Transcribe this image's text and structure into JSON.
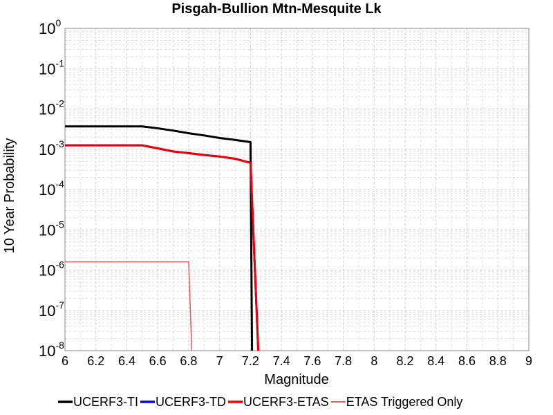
{
  "chart_data": {
    "type": "line",
    "title": "Pisgah-Bullion Mtn-Mesquite Lk",
    "xlabel": "Magnitude",
    "ylabel": "10 Year Probability",
    "xlim": [
      6,
      9
    ],
    "ylim": [
      1e-08,
      1
    ],
    "yscale": "log",
    "grid": true,
    "legend_position": "bottom",
    "x_ticks": [
      "6",
      "6.2",
      "6.4",
      "6.6",
      "6.8",
      "7",
      "7.2",
      "7.4",
      "7.6",
      "7.8",
      "8",
      "8.2",
      "8.4",
      "8.6",
      "8.8",
      "9"
    ],
    "y_ticks": [
      {
        "base": "10",
        "exp": "0",
        "value": 1
      },
      {
        "base": "10",
        "exp": "-1",
        "value": 0.1
      },
      {
        "base": "10",
        "exp": "-2",
        "value": 0.01
      },
      {
        "base": "10",
        "exp": "-3",
        "value": 0.001
      },
      {
        "base": "10",
        "exp": "-4",
        "value": 0.0001
      },
      {
        "base": "10",
        "exp": "-5",
        "value": 1e-05
      },
      {
        "base": "10",
        "exp": "-6",
        "value": 1e-06
      },
      {
        "base": "10",
        "exp": "-7",
        "value": 1e-07
      },
      {
        "base": "10",
        "exp": "-8",
        "value": 1e-08
      }
    ],
    "series": [
      {
        "name": "UCERF3-TI",
        "color": "#000000",
        "width": 3,
        "points": [
          [
            6.0,
            0.0037
          ],
          [
            6.5,
            0.0037
          ],
          [
            6.6,
            0.0033
          ],
          [
            6.7,
            0.0029
          ],
          [
            6.8,
            0.0025
          ],
          [
            6.9,
            0.0022
          ],
          [
            7.0,
            0.0019
          ],
          [
            7.1,
            0.0017
          ],
          [
            7.2,
            0.0015
          ],
          [
            7.21,
            1e-08
          ]
        ]
      },
      {
        "name": "UCERF3-TD",
        "color": "#0000ee",
        "width": 3,
        "points": [
          [
            6.0,
            0.00125
          ],
          [
            6.5,
            0.00125
          ],
          [
            6.6,
            0.00105
          ],
          [
            6.7,
            0.00088
          ],
          [
            6.8,
            0.0008
          ],
          [
            6.9,
            0.00072
          ],
          [
            7.0,
            0.00066
          ],
          [
            7.1,
            0.00058
          ],
          [
            7.2,
            0.00046
          ],
          [
            7.25,
            1e-08
          ]
        ]
      },
      {
        "name": "UCERF3-ETAS",
        "color": "#ee0000",
        "width": 3,
        "points": [
          [
            6.0,
            0.00125
          ],
          [
            6.5,
            0.00125
          ],
          [
            6.6,
            0.00105
          ],
          [
            6.7,
            0.00088
          ],
          [
            6.8,
            0.0008
          ],
          [
            6.9,
            0.00072
          ],
          [
            7.0,
            0.00066
          ],
          [
            7.1,
            0.00058
          ],
          [
            7.2,
            0.00046
          ],
          [
            7.25,
            1e-08
          ]
        ]
      },
      {
        "name": "ETAS Triggered Only",
        "color": "#ee5555",
        "width": 1.5,
        "points": [
          [
            6.0,
            1.6e-06
          ],
          [
            6.8,
            1.6e-06
          ],
          [
            6.82,
            1e-08
          ]
        ]
      }
    ]
  }
}
